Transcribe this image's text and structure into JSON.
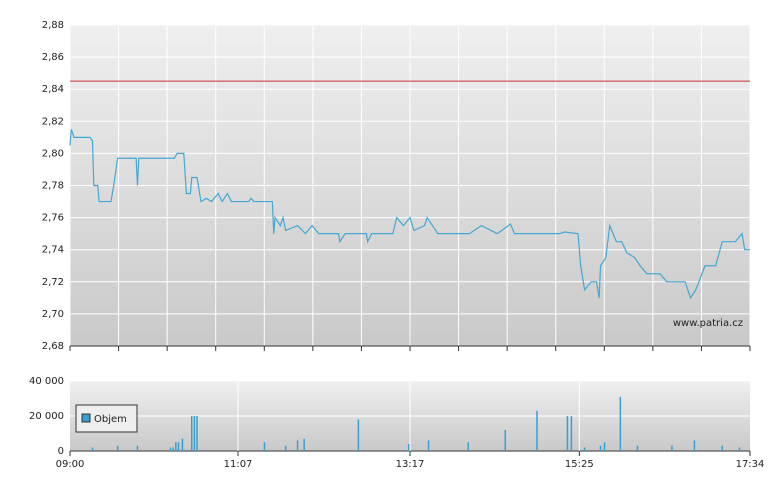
{
  "chart_data": [
    {
      "type": "line",
      "annotation": "www.patria.cz",
      "xlim": [
        "09:00",
        "17:34"
      ],
      "ylim": [
        2.68,
        2.88
      ],
      "yticks": [
        {
          "value": 2.68,
          "label": "2,68"
        },
        {
          "value": 2.7,
          "label": "2,70"
        },
        {
          "value": 2.72,
          "label": "2,72"
        },
        {
          "value": 2.74,
          "label": "2,74"
        },
        {
          "value": 2.76,
          "label": "2,76"
        },
        {
          "value": 2.78,
          "label": "2,78"
        },
        {
          "value": 2.8,
          "label": "2,80"
        },
        {
          "value": 2.82,
          "label": "2,82"
        },
        {
          "value": 2.84,
          "label": "2,84"
        },
        {
          "value": 2.86,
          "label": "2,86"
        },
        {
          "value": 2.88,
          "label": "2,88"
        }
      ],
      "grid": true,
      "reference_line": {
        "value": 2.845,
        "color": "#cc3333"
      },
      "series": [
        {
          "color": "#45a8d2",
          "x": [
            "09:00",
            "09:01",
            "09:03",
            "09:15",
            "09:17",
            "09:18",
            "09:21",
            "09:22",
            "09:31",
            "09:33",
            "09:36",
            "09:50",
            "09:51",
            "09:52",
            "10:19",
            "10:21",
            "10:26",
            "10:28",
            "10:31",
            "10:32",
            "10:36",
            "10:39",
            "10:43",
            "10:47",
            "10:52",
            "10:55",
            "10:59",
            "11:02",
            "11:15",
            "11:17",
            "11:19",
            "11:33",
            "11:34",
            "11:35",
            "11:39",
            "11:41",
            "11:43",
            "11:52",
            "11:58",
            "12:03",
            "12:08",
            "12:23",
            "12:24",
            "12:28",
            "12:44",
            "12:45",
            "12:48",
            "13:04",
            "13:07",
            "13:12",
            "13:17",
            "13:20",
            "13:28",
            "13:30",
            "13:38",
            "14:02",
            "14:11",
            "14:23",
            "14:33",
            "14:36",
            "15:10",
            "15:14",
            "15:24",
            "15:26",
            "15:29",
            "15:34",
            "15:38",
            "15:40",
            "15:41",
            "15:45",
            "15:48",
            "15:53",
            "15:57",
            "16:01",
            "16:07",
            "16:11",
            "16:16",
            "16:26",
            "16:31",
            "16:45",
            "16:49",
            "16:53",
            "17:00",
            "17:08",
            "17:13",
            "17:23",
            "17:28",
            "17:30",
            "17:34"
          ],
          "values": [
            2.805,
            2.815,
            2.81,
            2.81,
            2.808,
            2.78,
            2.78,
            2.77,
            2.77,
            2.78,
            2.797,
            2.797,
            2.78,
            2.797,
            2.797,
            2.8,
            2.8,
            2.775,
            2.775,
            2.785,
            2.785,
            2.77,
            2.772,
            2.77,
            2.775,
            2.77,
            2.775,
            2.77,
            2.77,
            2.772,
            2.77,
            2.77,
            2.75,
            2.76,
            2.755,
            2.76,
            2.752,
            2.755,
            2.75,
            2.755,
            2.75,
            2.75,
            2.745,
            2.75,
            2.75,
            2.745,
            2.75,
            2.75,
            2.76,
            2.755,
            2.76,
            2.752,
            2.755,
            2.76,
            2.75,
            2.75,
            2.755,
            2.75,
            2.756,
            2.75,
            2.75,
            2.751,
            2.75,
            2.73,
            2.715,
            2.72,
            2.72,
            2.71,
            2.73,
            2.735,
            2.755,
            2.745,
            2.745,
            2.738,
            2.735,
            2.73,
            2.725,
            2.725,
            2.72,
            2.72,
            2.71,
            2.715,
            2.73,
            2.73,
            2.745,
            2.745,
            2.75,
            2.74,
            2.74
          ]
        }
      ]
    },
    {
      "type": "bar",
      "xlim": [
        "09:00",
        "17:34"
      ],
      "xticks": [
        "09:00",
        "11:07",
        "13:17",
        "15:25",
        "17:34"
      ],
      "ylim": [
        0,
        40000
      ],
      "yticks": [
        0,
        {
          "value": 20000,
          "label": "20 000"
        },
        {
          "value": 40000,
          "label": "40 000"
        }
      ],
      "grid": true,
      "legend": "upper-left",
      "series": [
        {
          "name": "Objem",
          "color": "#3a9fcf",
          "x": [
            "09:17",
            "09:36",
            "09:51",
            "10:16",
            "10:18",
            "10:20",
            "10:22",
            "10:25",
            "10:32",
            "10:34",
            "10:36",
            "11:27",
            "11:43",
            "11:52",
            "11:57",
            "12:38",
            "13:16",
            "13:31",
            "14:01",
            "14:29",
            "14:53",
            "15:16",
            "15:19",
            "15:29",
            "15:41",
            "15:44",
            "15:56",
            "16:09",
            "16:35",
            "16:52",
            "17:13",
            "17:26"
          ],
          "values": [
            2000,
            3000,
            3000,
            2000,
            2000,
            5000,
            5000,
            7000,
            20000,
            20000,
            20000,
            5000,
            3000,
            6000,
            7000,
            18000,
            4000,
            6000,
            5000,
            12000,
            23000,
            20000,
            20000,
            2000,
            3000,
            5000,
            31000,
            3000,
            3000,
            6000,
            3000,
            2000
          ]
        }
      ]
    }
  ]
}
